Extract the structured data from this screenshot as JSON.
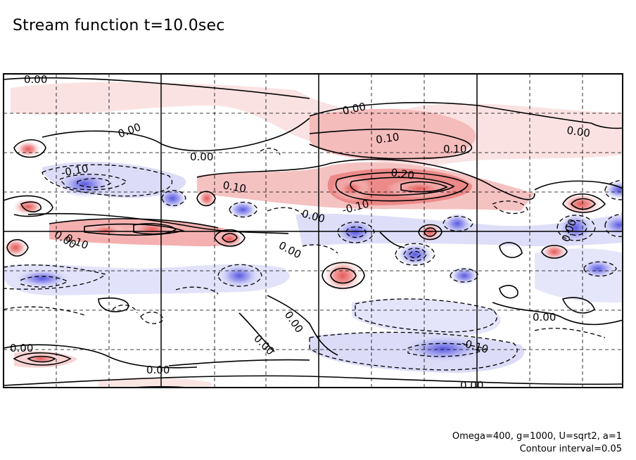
{
  "title": "Stream function t=10.0sec",
  "footer": {
    "params": "Omega=400, g=1000, U=sqrt2, a=1",
    "interval": "Contour interval=0.05"
  },
  "chart_data": {
    "type": "contour",
    "field": "stream function",
    "time_sec": 10.0,
    "contour_interval": 0.05,
    "grid_lines": "dashed",
    "color_scale": {
      "positive": "#e05050",
      "negative": "#5050e0",
      "zero": "#ffffff"
    },
    "contour_labels": [
      {
        "text": "0.00"
      },
      {
        "text": "0.00"
      },
      {
        "text": "0.00"
      },
      {
        "text": "0.00"
      },
      {
        "text": "0.00"
      },
      {
        "text": "0.10"
      },
      {
        "text": "0.10"
      },
      {
        "text": "-0.10"
      },
      {
        "text": "0.20"
      },
      {
        "text": "0.10"
      },
      {
        "text": "0.00"
      },
      {
        "text": "-0.10"
      },
      {
        "text": "0.10"
      },
      {
        "text": "0.00"
      },
      {
        "text": "0.00"
      },
      {
        "text": "0.00"
      },
      {
        "text": "0.00"
      },
      {
        "text": "0.00"
      },
      {
        "text": "0.00"
      },
      {
        "text": "-0.10"
      },
      {
        "text": "0.00"
      },
      {
        "text": "0.00"
      }
    ],
    "features": [
      {
        "sign": "positive",
        "amplitude": 0.28
      },
      {
        "sign": "positive",
        "amplitude": 0.25
      },
      {
        "sign": "positive",
        "amplitude": 0.22
      },
      {
        "sign": "negative",
        "amplitude": -0.22
      },
      {
        "sign": "negative",
        "amplitude": -0.2
      },
      {
        "sign": "negative",
        "amplitude": -0.15
      }
    ]
  }
}
